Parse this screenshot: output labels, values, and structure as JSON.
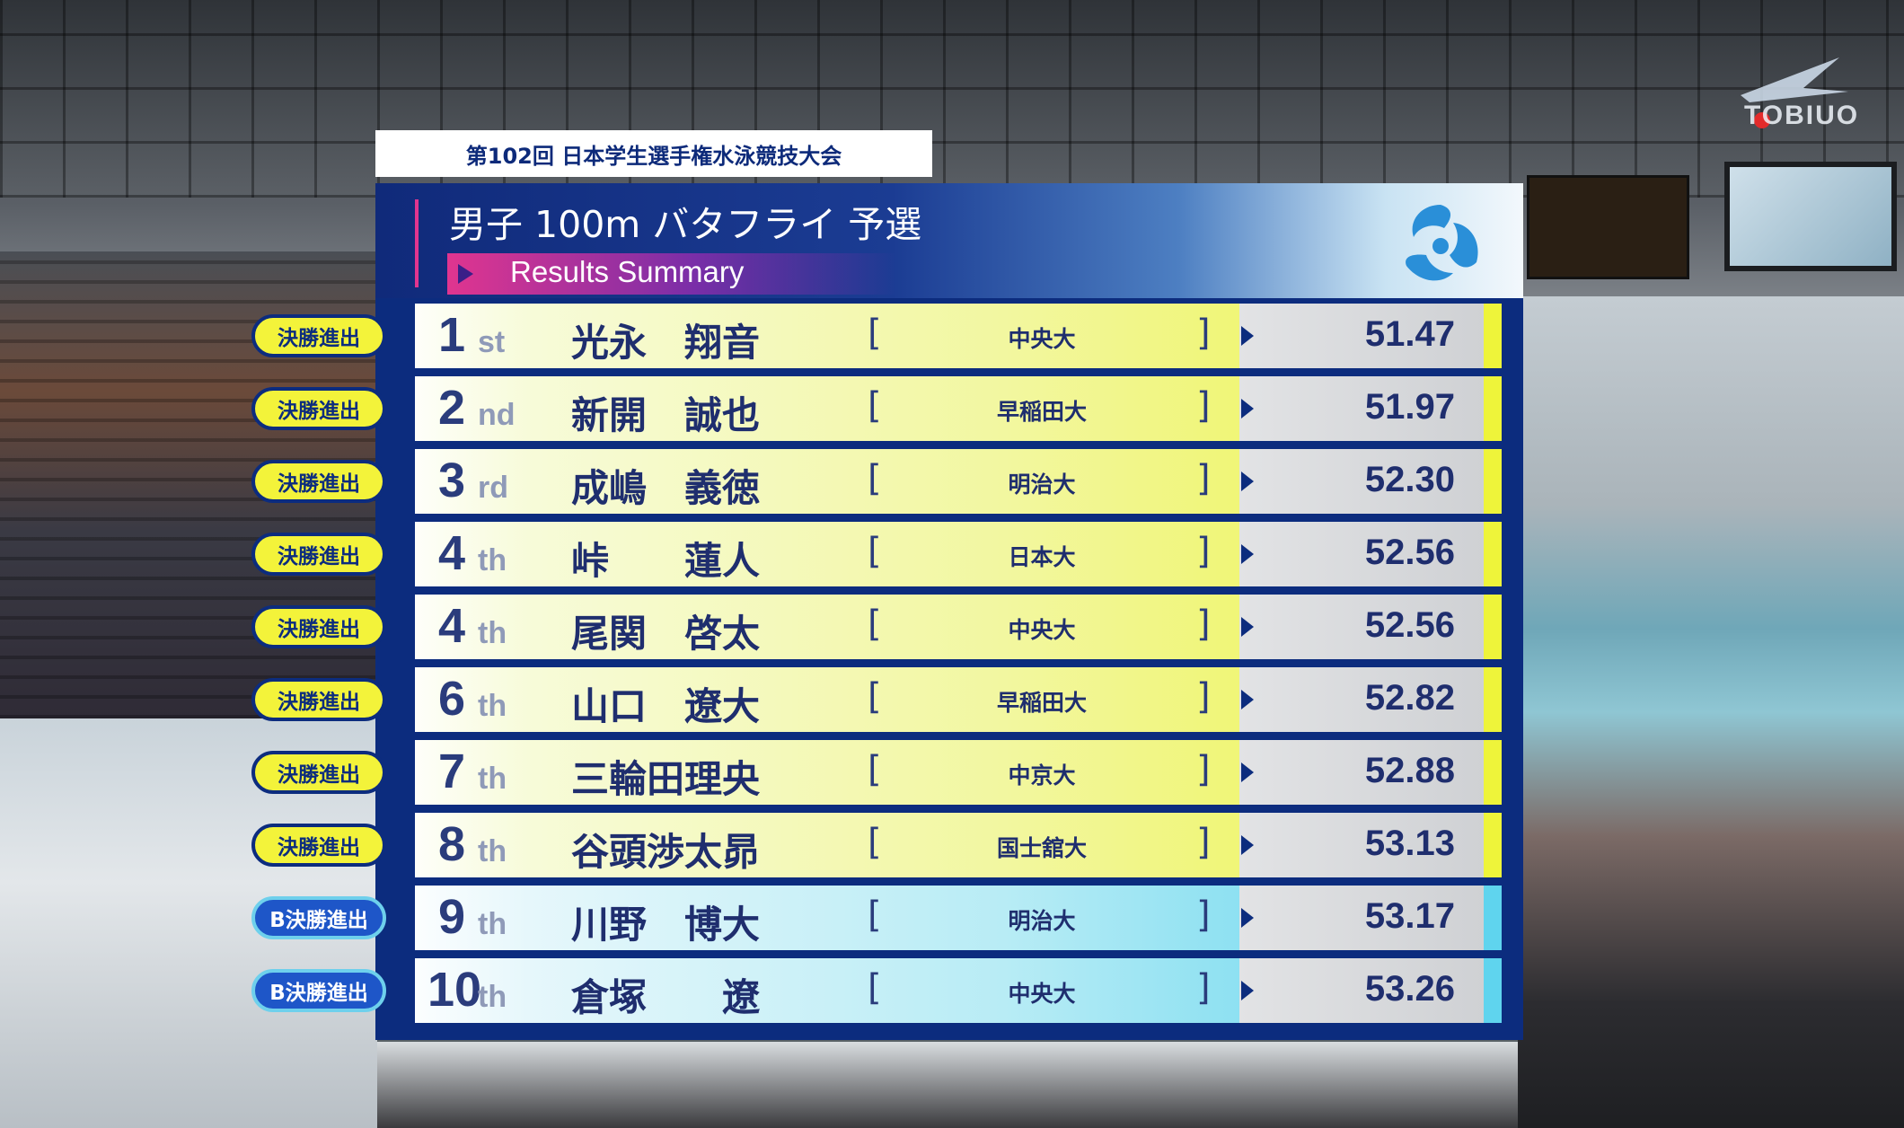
{
  "event_bar": {
    "meet": "第102回 日本学生選手権水泳競技大会"
  },
  "header": {
    "title": "男子 100m バタフライ 予選",
    "subtitle": "Results Summary"
  },
  "broadcaster": {
    "logo_text": "TOBIUO"
  },
  "colors": {
    "navy": "#0c2c7e",
    "final_yellow": "#eef43a",
    "bfinal_cyan": "#5fd4ee",
    "accent_pink": "#e0358f"
  },
  "results": [
    {
      "qual": "決勝進出",
      "type": "final",
      "rank": "1",
      "suffix": "st",
      "name": "光永　翔音",
      "school": "中央大",
      "time": "51.47"
    },
    {
      "qual": "決勝進出",
      "type": "final",
      "rank": "2",
      "suffix": "nd",
      "name": "新開　誠也",
      "school": "早稲田大",
      "time": "51.97"
    },
    {
      "qual": "決勝進出",
      "type": "final",
      "rank": "3",
      "suffix": "rd",
      "name": "成嶋　義徳",
      "school": "明治大",
      "time": "52.30"
    },
    {
      "qual": "決勝進出",
      "type": "final",
      "rank": "4",
      "suffix": "th",
      "name": "峠　　蓮人",
      "school": "日本大",
      "time": "52.56"
    },
    {
      "qual": "決勝進出",
      "type": "final",
      "rank": "4",
      "suffix": "th",
      "name": "尾関　啓太",
      "school": "中央大",
      "time": "52.56"
    },
    {
      "qual": "決勝進出",
      "type": "final",
      "rank": "6",
      "suffix": "th",
      "name": "山口　遼大",
      "school": "早稲田大",
      "time": "52.82"
    },
    {
      "qual": "決勝進出",
      "type": "final",
      "rank": "7",
      "suffix": "th",
      "name": "三輪田理央",
      "school": "中京大",
      "time": "52.88"
    },
    {
      "qual": "決勝進出",
      "type": "final",
      "rank": "8",
      "suffix": "th",
      "name": "谷頭渉太昴",
      "school": "国士舘大",
      "time": "53.13"
    },
    {
      "qual": "B決勝進出",
      "type": "bfinal",
      "rank": "9",
      "suffix": "th",
      "name": "川野　博大",
      "school": "明治大",
      "time": "53.17"
    },
    {
      "qual": "B決勝進出",
      "type": "bfinal",
      "rank": "10",
      "suffix": "th",
      "name": "倉塚　　遼",
      "school": "中央大",
      "time": "53.26"
    }
  ]
}
